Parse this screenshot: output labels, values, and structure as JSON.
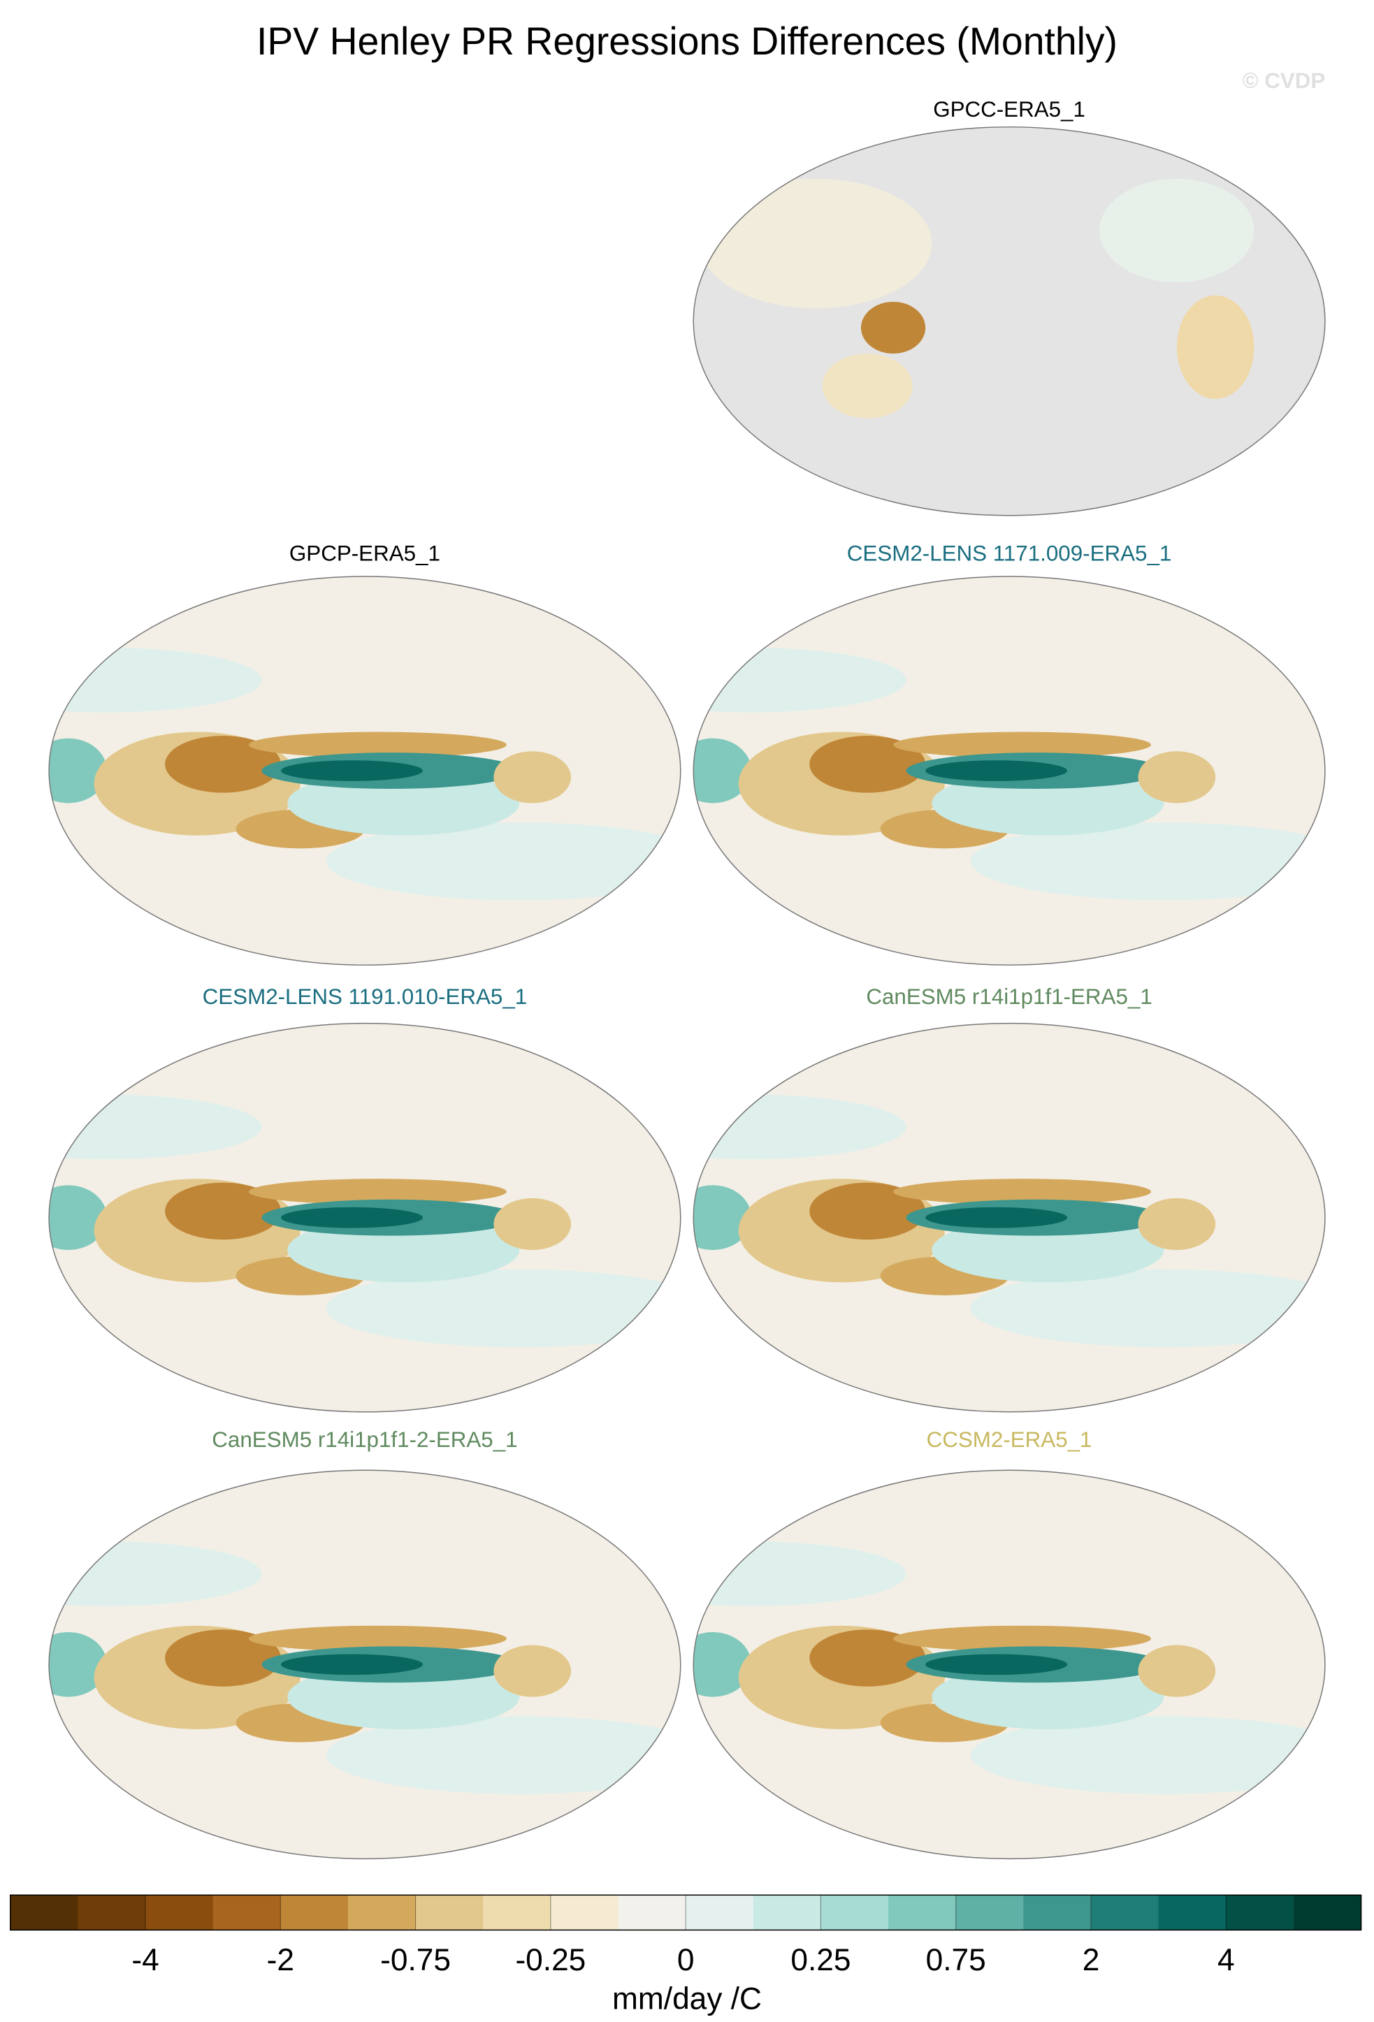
{
  "title": "IPV Henley PR Regressions Differences (Monthly)",
  "copyright": "© CVDP",
  "panels": [
    {
      "title": "GPCC-ERA5_1",
      "color": "#000000"
    },
    {
      "title": "GPCP-ERA5_1",
      "color": "#000000"
    },
    {
      "title": "CESM2-LENS 1171.009-ERA5_1",
      "color": "#1a6e80"
    },
    {
      "title": "CESM2-LENS 1191.010-ERA5_1",
      "color": "#1a6e80"
    },
    {
      "title": "CanESM5 r14i1p1f1-ERA5_1",
      "color": "#5f8a5f"
    },
    {
      "title": "CanESM5 r14i1p1f1-2-ERA5_1",
      "color": "#5f8a5f"
    },
    {
      "title": "CCSM2-ERA5_1",
      "color": "#c8b860"
    }
  ],
  "colorbar": {
    "colors": [
      "#543005",
      "#6f3d09",
      "#8a4d0d",
      "#a86520",
      "#c08638",
      "#d4a95e",
      "#e3c88d",
      "#efdcae",
      "#f5ebd3",
      "#f3f1ec",
      "#e6f1ef",
      "#c9e9e4",
      "#a6dcd3",
      "#80c9bc",
      "#5fb0a5",
      "#3d978e",
      "#1f7f77",
      "#08675f",
      "#035146",
      "#003c30"
    ],
    "ticks": [
      -4,
      -2,
      -0.75,
      -0.25,
      0,
      0.25,
      0.75,
      2,
      4
    ],
    "label": "mm/day /C"
  }
}
